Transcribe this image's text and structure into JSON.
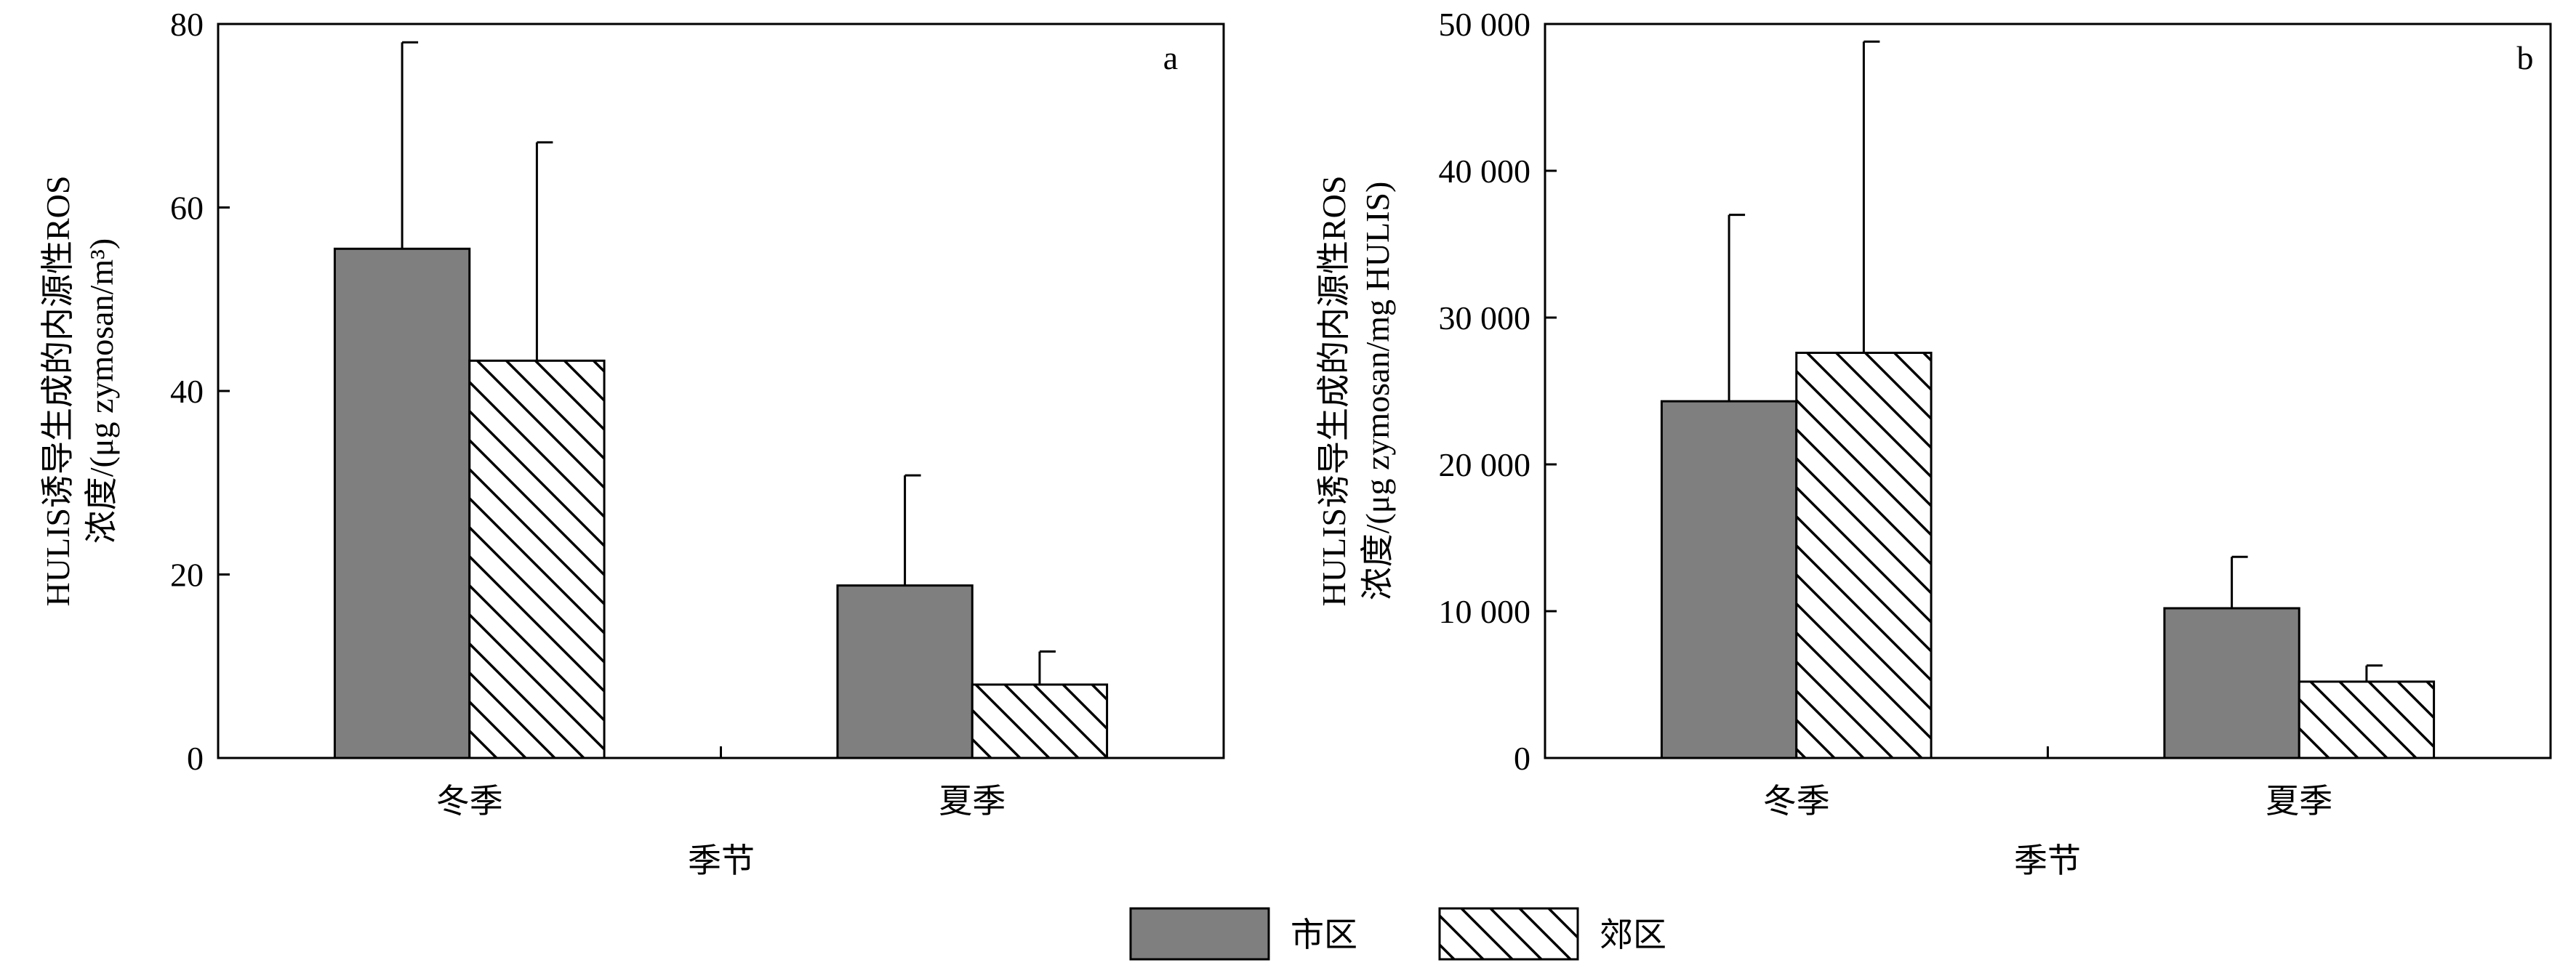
{
  "chart_data": [
    {
      "type": "bar",
      "panel": "a",
      "categories": [
        "冬季",
        "夏季"
      ],
      "xlabel": "季节",
      "ylabel_line1": "HULIS诱导生成的内源性ROS",
      "ylabel_line2": "浓度/(μg zymosan/m³)",
      "ylim": [
        0,
        80
      ],
      "yticks": [
        0,
        20,
        40,
        60,
        80
      ],
      "ytick_labels": [
        "0",
        "20",
        "40",
        "60",
        "80"
      ],
      "grid": false,
      "series": [
        {
          "name": "市区",
          "values": [
            55.5,
            18.8
          ],
          "errors": [
            22.5,
            12.0
          ]
        },
        {
          "name": "郊区",
          "values": [
            43.3,
            8.0
          ],
          "errors": [
            23.8,
            3.6
          ]
        }
      ]
    },
    {
      "type": "bar",
      "panel": "b",
      "categories": [
        "冬季",
        "夏季"
      ],
      "xlabel": "季节",
      "ylabel_line1": "HULIS诱导生成的内源性ROS",
      "ylabel_line2": "浓度/(μg zymosan/mg HULIS)",
      "ylim": [
        0,
        50000
      ],
      "yticks": [
        0,
        10000,
        20000,
        30000,
        40000,
        50000
      ],
      "ytick_labels": [
        "0",
        "10 000",
        "20 000",
        "30 000",
        "40 000",
        "50 000"
      ],
      "grid": false,
      "series": [
        {
          "name": "市区",
          "values": [
            24300,
            10200
          ],
          "errors": [
            12700,
            3500
          ]
        },
        {
          "name": "郊区",
          "values": [
            27600,
            5200
          ],
          "errors": [
            21200,
            1100
          ]
        }
      ]
    }
  ],
  "legend": {
    "placement": "bottom-center",
    "items": [
      {
        "label": "市区",
        "style": "solid-gray"
      },
      {
        "label": "郊区",
        "style": "hatched"
      }
    ]
  },
  "colors": {
    "bar_solid": "#7f7f7f",
    "hatch_line": "#000000",
    "axis": "#000000",
    "background": "#ffffff"
  }
}
